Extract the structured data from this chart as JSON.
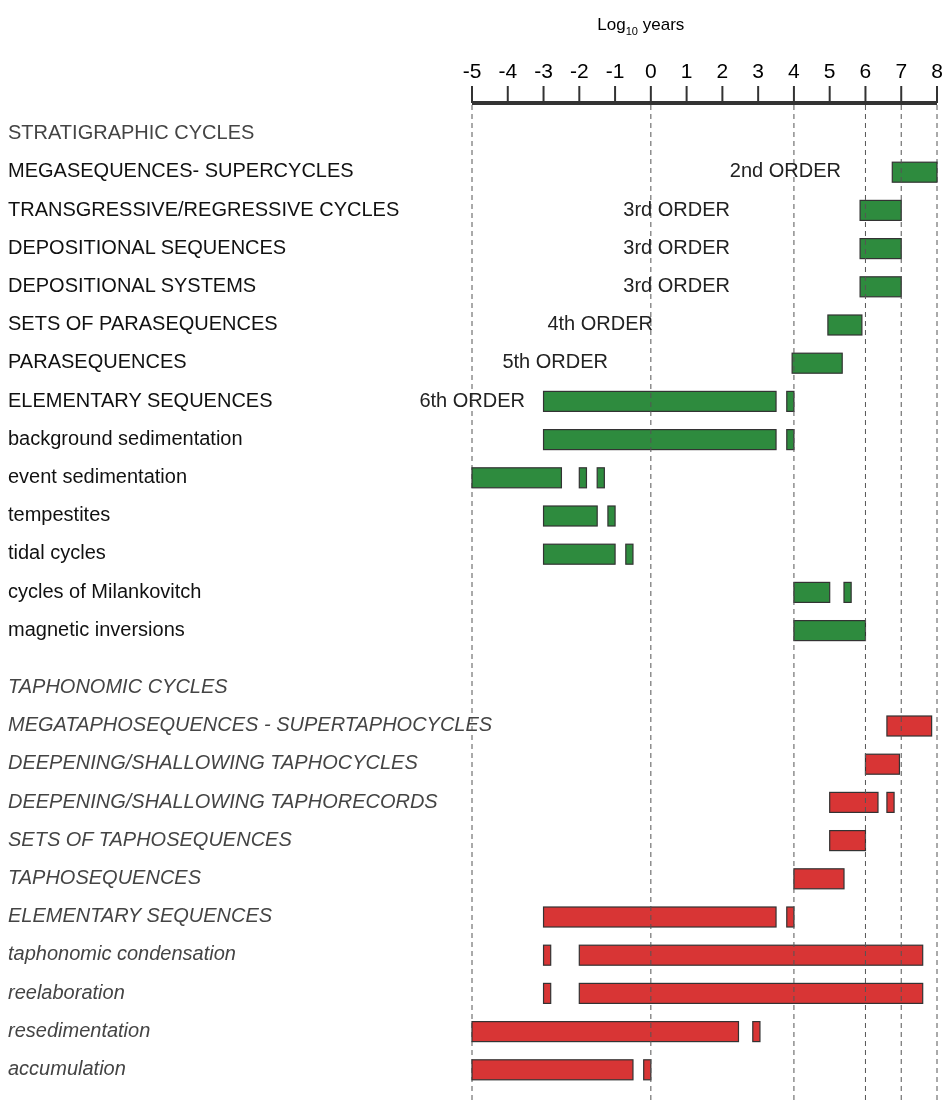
{
  "chart_data": {
    "type": "bar",
    "orientation": "horizontal",
    "xlabel": "Log$_{10}$ years",
    "categories": [
      "STRATIGRAPHIC CYCLES",
      "MEGASEQUENCES- SUPERCYCLES",
      "TRANSGRESSIVE/REGRESSIVE CYCLES",
      "DEPOSITIONAL SEQUENCES",
      "DEPOSITIONAL SYSTEMS",
      "SETS OF PARASEQUENCES",
      "PARASEQUENCES",
      "ELEMENTARY SEQUENCES",
      "background sedimentation",
      "event sedimentation",
      "tempestites",
      "tidal cycles",
      "cycles of Milankovitch",
      "magnetic inversions",
      "TAPHONOMIC CYCLES",
      "MEGATAPHOSEQUENCES - SUPERTAPHOCYCLES",
      "DEEPENING/SHALLOWING TAPHOCYCLES",
      "DEEPENING/SHALLOWING TAPHORECORDS",
      "SETS OF TAPHOSEQUENCES",
      "TAPHOSEQUENCES",
      "ELEMENTARY SEQUENCES",
      "taphonomic condensation",
      "reelaboration",
      "resedimentation",
      "accumulation"
    ],
    "series": [
      {
        "base": [
          null,
          6.75,
          5.85,
          5.85,
          5.85,
          4.95,
          3.95,
          -3,
          -3,
          -5,
          -3,
          -3,
          4,
          4,
          null,
          6.6,
          6,
          5,
          5,
          4,
          -3,
          -3,
          -3,
          -5,
          -5
        ],
        "values": [
          null,
          1.25,
          1.15,
          1.15,
          1.15,
          0.95,
          1.4,
          6.5,
          6.5,
          2.5,
          1.5,
          2,
          1,
          2,
          null,
          1.25,
          0.95,
          1.35,
          1,
          1.4,
          6.5,
          0.2,
          0.2,
          7.45,
          4.5
        ],
        "colors": [
          null,
          "#2e8b3e",
          "#2e8b3e",
          "#2e8b3e",
          "#2e8b3e",
          "#2e8b3e",
          "#2e8b3e",
          "#2e8b3e",
          "#2e8b3e",
          "#2e8b3e",
          "#2e8b3e",
          "#2e8b3e",
          "#2e8b3e",
          "#2e8b3e",
          null,
          "#d83535",
          "#d83535",
          "#d83535",
          "#d83535",
          "#d83535",
          "#d83535",
          "#d83535",
          "#d83535",
          "#d83535",
          "#d83535"
        ]
      },
      {
        "base": [
          null,
          null,
          null,
          null,
          null,
          null,
          null,
          3.8,
          3.8,
          -2,
          -1.2,
          -0.7,
          5.4,
          null,
          null,
          null,
          null,
          6.6,
          null,
          null,
          3.8,
          -2,
          -2,
          2.85,
          -0.2
        ],
        "values": [
          null,
          null,
          null,
          null,
          null,
          null,
          null,
          0.2,
          0.2,
          0.2,
          0.2,
          0.2,
          0.2,
          null,
          null,
          null,
          null,
          0.2,
          null,
          null,
          0.2,
          9.6,
          9.6,
          0.2,
          0.2
        ],
        "colors": [
          null,
          null,
          null,
          null,
          null,
          null,
          null,
          "#2e8b3e",
          "#2e8b3e",
          "#2e8b3e",
          "#2e8b3e",
          "#2e8b3e",
          "#2e8b3e",
          null,
          null,
          null,
          null,
          "#d83535",
          null,
          null,
          "#d83535",
          "#d83535",
          "#d83535",
          "#d83535",
          "#d83535"
        ]
      },
      {
        "base": [
          null,
          null,
          null,
          null,
          null,
          null,
          null,
          null,
          null,
          -1.5,
          null,
          null,
          null,
          null,
          null,
          null,
          null,
          null,
          null,
          null,
          null,
          null,
          null,
          null,
          null
        ],
        "values": [
          null,
          null,
          null,
          null,
          null,
          null,
          null,
          null,
          null,
          0.2,
          null,
          null,
          null,
          null,
          null,
          null,
          null,
          null,
          null,
          null,
          null,
          null,
          null,
          null,
          null
        ],
        "colors": [
          null,
          null,
          null,
          null,
          null,
          null,
          null,
          null,
          null,
          "#2e8b3e",
          null,
          null,
          null,
          null,
          null,
          null,
          null,
          null,
          null,
          null,
          null,
          null,
          null,
          null,
          null
        ]
      }
    ],
    "xlim": [
      -5,
      8
    ],
    "xticks": [
      -5,
      -4,
      -3,
      -2,
      -1,
      0,
      1,
      2,
      3,
      4,
      5,
      6,
      7,
      8
    ],
    "ref_lines": [
      {
        "axis": "x",
        "value": 0,
        "line_style": "dashed"
      },
      {
        "axis": "x",
        "value": 4,
        "line_style": "dashed"
      },
      {
        "axis": "x",
        "value": 6,
        "line_style": "dashed"
      },
      {
        "axis": "x",
        "value": 7,
        "line_style": "dashed"
      }
    ],
    "annotations": [
      "2nd ORDER",
      "3rd ORDER",
      "3rd ORDER",
      "3rd ORDER",
      "4th ORDER",
      "5th ORDER",
      "6th ORDER"
    ]
  }
}
